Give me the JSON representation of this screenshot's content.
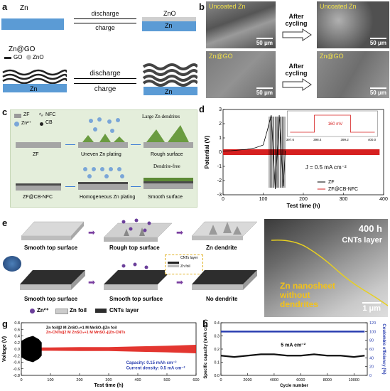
{
  "panel_a": {
    "letter": "a",
    "zn_label": "Zn",
    "top_discharge": "discharge",
    "top_charge": "charge",
    "zno_label": "ZnO",
    "zn_bar_left": "Zn",
    "zn_bar_right": "Zn",
    "zngo_label": "Zn@GO",
    "legend_go": "GO",
    "legend_zno": "ZnO",
    "bottom_discharge": "discharge",
    "bottom_charge": "charge",
    "zn_bar_bl": "Zn",
    "zn_bar_br": "Zn"
  },
  "panel_b": {
    "letter": "b",
    "img1_label": "Uncoated Zn",
    "img2_label": "Uncoated Zn",
    "img3_label": "Zn@GO",
    "img4_label": "Zn@GO",
    "scale": "50 μm",
    "after_cycling": "After cycling"
  },
  "panel_c": {
    "letter": "c",
    "legend_zf": "ZF",
    "legend_nfc": "NFC",
    "legend_zn": "Zn²⁺",
    "legend_cb": "CB",
    "large_dendrites": "Large Zn dendrites",
    "zf": "ZF",
    "uneven": "Uneven Zn plating",
    "rough": "Rough surface",
    "dendrite_free": "Dendrite-free",
    "zfcb": "ZF@CB-NFC",
    "homogeneous": "Homogeneous Zn plating",
    "smooth": "Smooth surface"
  },
  "panel_e": {
    "letter": "e",
    "smooth_top_1": "Smooth top surface",
    "rough_top": "Rough top surface",
    "zn_dendrite": "Zn dendrite",
    "cnts_layer_inset": "CNTs layer",
    "zn_foil_inset": "Zn foil",
    "smooth_top_2": "Smooth top surface",
    "smooth_top_3": "Smooth top surface",
    "no_dendrite": "No dendrite",
    "legend_zn": "Zn²⁺",
    "legend_foil": "Zn foil",
    "legend_cnts": "CNTs layer"
  },
  "panel_f": {
    "letter": "f",
    "time": "400 h",
    "cnts_layer": "CNTs layer",
    "nanosheet": "Zn nanosheet without dendrites",
    "scale": "1 μm"
  },
  "chart_data": [
    {
      "panel": "d",
      "type": "line",
      "xlabel": "Test time (h)",
      "ylabel": "Potential (V)",
      "xlim": [
        0,
        400
      ],
      "ylim": [
        -3,
        3
      ],
      "xticks": [
        0,
        100,
        200,
        300,
        400
      ],
      "yticks": [
        -3,
        -2,
        -1,
        0,
        1,
        2,
        3
      ],
      "annotation": "J = 0.5 mA cm⁻²",
      "series": [
        {
          "name": "ZF",
          "color": "#000000",
          "x": [
            0,
            20,
            40,
            60,
            80,
            100,
            110,
            120,
            130,
            140,
            150,
            155
          ],
          "y": [
            0.08,
            0.1,
            0.15,
            0.2,
            0.3,
            0.5,
            1.5,
            2.6,
            -2.6,
            2.6,
            -2.4,
            0.1
          ]
        },
        {
          "name": "ZF@CB-NFC",
          "color": "#d62020",
          "x": [
            0,
            100,
            200,
            300,
            390
          ],
          "y": [
            0.08,
            0.08,
            0.08,
            0.08,
            0.08
          ]
        }
      ],
      "inset": {
        "xticks": [
          397.6,
          398.4,
          399.2,
          400.0
        ],
        "label": "160 mV"
      }
    },
    {
      "panel": "g",
      "type": "line",
      "xlabel": "Test time (h)",
      "ylabel": "Voltage (V)",
      "xlim": [
        0,
        600
      ],
      "ylim": [
        -0.8,
        0.8
      ],
      "xticks": [
        0,
        100,
        200,
        300,
        400,
        500,
        600
      ],
      "yticks": [
        -0.8,
        -0.6,
        -0.4,
        -0.2,
        0.0,
        0.2,
        0.4,
        0.6,
        0.8
      ],
      "legend": [
        "Zn foil||2 M ZnSO₄+1 M MnSO₄||Zn foil",
        "Zn-CNTs||2 M ZnSO₄+1 M MnSO₄||Zn-CNTs"
      ],
      "annotation_capacity": "Capacity: 0.15 mAh cm⁻²",
      "annotation_density": "Current density: 0.5 mA cm⁻²",
      "series": [
        {
          "name": "Zn foil",
          "color": "#000000",
          "x": [
            0,
            20,
            40,
            60,
            70
          ],
          "y": [
            0.25,
            0.35,
            0.4,
            0.3,
            0.2
          ]
        },
        {
          "name": "Zn-CNTs",
          "color": "#e0201a",
          "x": [
            0,
            100,
            200,
            300,
            400,
            500,
            600
          ],
          "y": [
            0.05,
            0.05,
            0.06,
            0.06,
            0.08,
            0.1,
            0.13
          ]
        }
      ]
    },
    {
      "panel": "h",
      "type": "scatter",
      "xlabel": "Cycle number",
      "ylabel": "Specific capacity (mAh cm⁻²)",
      "ylabel_right": "Coulombic efficiency (%)",
      "xlim": [
        0,
        11000
      ],
      "ylim": [
        0.0,
        0.4
      ],
      "ylim_right": [
        0,
        120
      ],
      "xticks": [
        0,
        2000,
        4000,
        6000,
        8000,
        10000
      ],
      "yticks": [
        0.0,
        0.1,
        0.2,
        0.3,
        0.4
      ],
      "yticks_right": [
        0,
        20,
        40,
        60,
        80,
        100,
        120
      ],
      "annotation": "5 mA cm⁻²",
      "series": [
        {
          "name": "Specific capacity",
          "color": "#111111",
          "x": [
            0,
            1000,
            2000,
            3000,
            4000,
            5000,
            6000,
            7000,
            8000,
            9000,
            10000,
            10800
          ],
          "y": [
            0.15,
            0.14,
            0.15,
            0.16,
            0.16,
            0.15,
            0.15,
            0.16,
            0.15,
            0.15,
            0.14,
            0.15
          ]
        },
        {
          "name": "Coulombic efficiency",
          "color": "#2a3fb0",
          "x": [
            0,
            2000,
            4000,
            6000,
            8000,
            10000,
            10800
          ],
          "y": [
            100,
            100,
            100,
            100,
            100,
            100,
            100
          ]
        }
      ]
    }
  ]
}
